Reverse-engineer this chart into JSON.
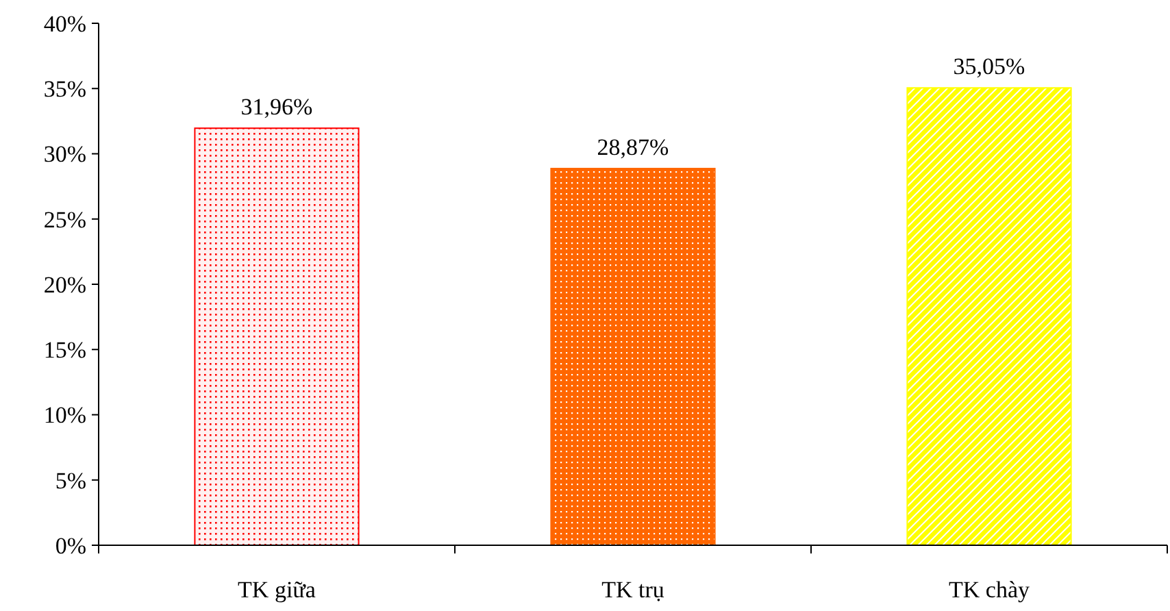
{
  "chart_data": {
    "type": "bar",
    "categories": [
      "TK giữa",
      "TK trụ",
      "TK chày"
    ],
    "values": [
      31.96,
      28.87,
      35.05
    ],
    "colors": [
      "#ff0000",
      "#ff6600",
      "#ffff00"
    ],
    "value_labels": [
      "31,96%",
      "28,87%",
      "35,05%"
    ],
    "ylim": [
      0,
      40
    ],
    "yticks": [
      {
        "value": 0,
        "label": "0%"
      },
      {
        "value": 5,
        "label": "5%"
      },
      {
        "value": 10,
        "label": "10%"
      },
      {
        "value": 15,
        "label": "15%"
      },
      {
        "value": 20,
        "label": "20%"
      },
      {
        "value": 25,
        "label": "25%"
      },
      {
        "value": 30,
        "label": "30%"
      },
      {
        "value": 35,
        "label": "35%"
      },
      {
        "value": 40,
        "label": "40%"
      }
    ]
  }
}
